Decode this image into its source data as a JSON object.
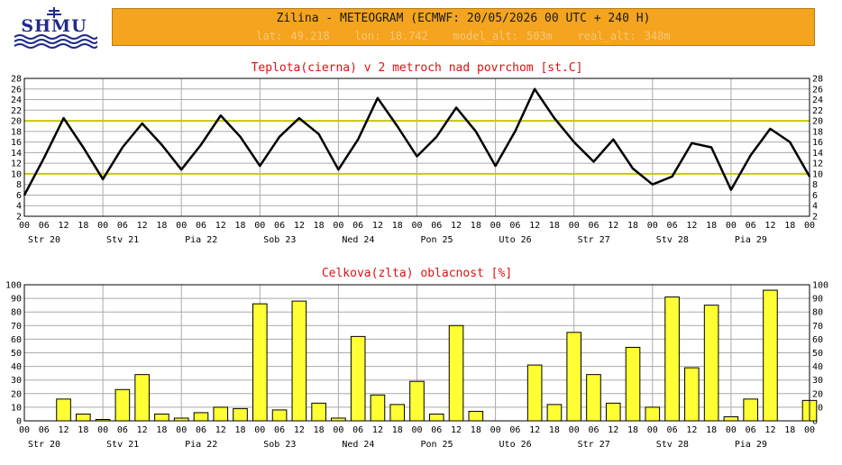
{
  "header": {
    "logo_text": "SHMU",
    "title": "Zilina - METEOGRAM (ECMWF: 20/05/2026 00 UTC + 240 H)",
    "meta": "lat: 49.218   lon: 18.742   model_alt: 503m   real_alt: 348m"
  },
  "colors": {
    "header_bg": "#f4a41e",
    "title_text": "#e01010",
    "temp_line": "#000000",
    "threshold_line": "#c8c800",
    "bar_fill": "#ffff33",
    "grid": "#aaaaaa"
  },
  "chart_data": [
    {
      "type": "line",
      "title": "Teplota(cierna) v 2 metroch nad povrchom [st.C]",
      "xlabel": "",
      "ylabel": "",
      "x_unit": "hours from 20/05/2026 00 UTC",
      "x_tick_labels": [
        "00",
        "06",
        "12",
        "18",
        "00",
        "06",
        "12",
        "18",
        "00",
        "06",
        "12",
        "18",
        "00",
        "06",
        "12",
        "18",
        "00",
        "06",
        "12",
        "18",
        "00",
        "06",
        "12",
        "18",
        "00",
        "06",
        "12",
        "18",
        "00",
        "06",
        "12",
        "18",
        "00",
        "06",
        "12",
        "18",
        "00",
        "06",
        "12",
        "18",
        "00"
      ],
      "day_labels": [
        "Str 20",
        "Stv 21",
        "Pia 22",
        "Sob 23",
        "Ned 24",
        "Pon 25",
        "Uto 26",
        "Str 27",
        "Stv 28",
        "Pia 29"
      ],
      "yticks": [
        2,
        4,
        6,
        8,
        10,
        12,
        14,
        16,
        18,
        20,
        22,
        24,
        26,
        28
      ],
      "ylim": [
        2,
        28
      ],
      "xlim": [
        0,
        240
      ],
      "reference_lines": [
        10,
        20
      ],
      "grid": true,
      "series": [
        {
          "x": [
            0,
            6,
            12,
            18,
            24,
            30,
            36,
            42,
            48,
            54,
            60,
            66,
            72,
            78,
            84,
            90,
            96,
            102,
            108,
            114,
            120,
            126,
            132,
            138,
            144,
            150,
            156,
            162,
            168,
            174,
            180,
            186,
            192,
            198,
            204,
            210,
            216,
            222,
            228,
            234,
            240
          ],
          "y": [
            6,
            13,
            20.5,
            15,
            9,
            15,
            19.5,
            15.5,
            10.8,
            15.5,
            21,
            17,
            11.5,
            17,
            20.5,
            17.5,
            10.8,
            16.5,
            24.3,
            19,
            13.3,
            17,
            22.5,
            18,
            11.5,
            18,
            26,
            20.5,
            16,
            12.3,
            16.5,
            11,
            8,
            9.5,
            15.8,
            15,
            7,
            13.5,
            18.5,
            16,
            9.5
          ]
        }
      ]
    },
    {
      "type": "bar",
      "title": "Celkova(zlta) oblacnost [%]",
      "xlabel": "",
      "ylabel": "",
      "x_unit": "hours from 20/05/2026 00 UTC",
      "x_tick_labels": [
        "00",
        "06",
        "12",
        "18",
        "00",
        "06",
        "12",
        "18",
        "00",
        "06",
        "12",
        "18",
        "00",
        "06",
        "12",
        "18",
        "00",
        "06",
        "12",
        "18",
        "00",
        "06",
        "12",
        "18",
        "00",
        "06",
        "12",
        "18",
        "00",
        "06",
        "12",
        "18",
        "00",
        "06",
        "12",
        "18",
        "00",
        "06",
        "12",
        "18",
        "00"
      ],
      "day_labels": [
        "Str 20",
        "Stv 21",
        "Pia 22",
        "Sob 23",
        "Ned 24",
        "Pon 25",
        "Uto 26",
        "Str 27",
        "Stv 28",
        "Pia 29"
      ],
      "yticks": [
        0,
        10,
        20,
        30,
        40,
        50,
        60,
        70,
        80,
        90,
        100
      ],
      "ylim": [
        0,
        100
      ],
      "xlim": [
        0,
        240
      ],
      "grid": true,
      "series": [
        {
          "x": [
            0,
            6,
            12,
            18,
            24,
            30,
            36,
            42,
            48,
            54,
            60,
            66,
            72,
            78,
            84,
            90,
            96,
            102,
            108,
            114,
            120,
            126,
            132,
            138,
            144,
            150,
            156,
            162,
            168,
            174,
            180,
            186,
            192,
            198,
            204,
            210,
            216,
            222,
            228,
            234,
            240
          ],
          "y": [
            0,
            0,
            16,
            5,
            1,
            23,
            34,
            5,
            2,
            6,
            10,
            9,
            86,
            8,
            88,
            13,
            2,
            62,
            19,
            12,
            29,
            5,
            70,
            7,
            0,
            0,
            41,
            12,
            65,
            34,
            13,
            54,
            10,
            91,
            39,
            85,
            3,
            16,
            96,
            0,
            15
          ]
        }
      ]
    }
  ]
}
